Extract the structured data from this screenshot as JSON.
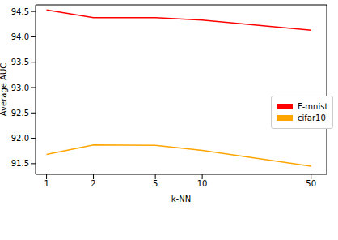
{
  "chart_data": {
    "type": "line",
    "x_label": "k-NN",
    "y_label": "Average AUC",
    "x": [
      1,
      2,
      5,
      10,
      50
    ],
    "series": [
      {
        "name": "F-mnist",
        "color": "#ff0000",
        "values": [
          94.53,
          94.38,
          94.38,
          94.33,
          94.13
        ]
      },
      {
        "name": "cifar10",
        "color": "#ffa500",
        "values": [
          91.68,
          91.87,
          91.86,
          91.76,
          91.45
        ]
      }
    ],
    "xlim": [
      0.85,
      63
    ],
    "ylim": [
      91.29,
      94.63
    ],
    "xticks": [
      1,
      2,
      5,
      10,
      50
    ],
    "yticks": [
      91.5,
      92.0,
      92.5,
      93.0,
      93.5,
      94.0,
      94.5
    ],
    "log": "x",
    "grid": false,
    "legend": "right"
  }
}
